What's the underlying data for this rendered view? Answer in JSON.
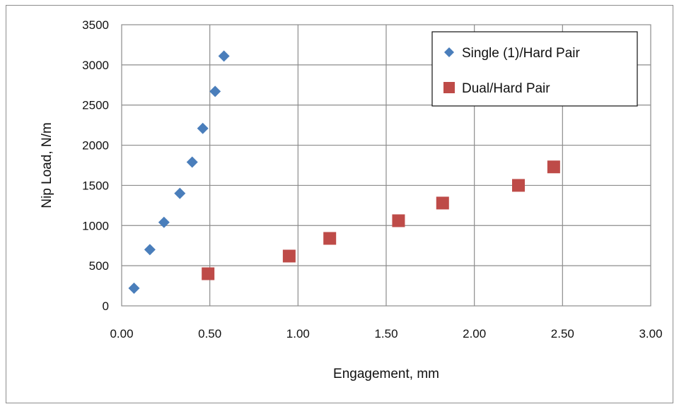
{
  "chart_data": {
    "type": "scatter",
    "title": "",
    "xlabel": "Engagement, mm",
    "ylabel": "Nip Load, N/m",
    "xlim": [
      0,
      3
    ],
    "ylim": [
      0,
      3500
    ],
    "x_ticks": [
      "0.00",
      "0.50",
      "1.00",
      "1.50",
      "2.00",
      "2.50",
      "3.00"
    ],
    "y_ticks": [
      "0",
      "500",
      "1000",
      "1500",
      "2000",
      "2500",
      "3000",
      "3500"
    ],
    "grid": true,
    "legend_position": "top-right",
    "series": [
      {
        "name": "Single (1)/Hard Pair",
        "marker": "diamond",
        "color": "#4a7ebb",
        "points": [
          {
            "x": 0.07,
            "y": 220
          },
          {
            "x": 0.16,
            "y": 700
          },
          {
            "x": 0.24,
            "y": 1040
          },
          {
            "x": 0.33,
            "y": 1400
          },
          {
            "x": 0.4,
            "y": 1790
          },
          {
            "x": 0.46,
            "y": 2210
          },
          {
            "x": 0.53,
            "y": 2670
          },
          {
            "x": 0.58,
            "y": 3110
          }
        ]
      },
      {
        "name": "Dual/Hard Pair",
        "marker": "square",
        "color": "#be4b48",
        "points": [
          {
            "x": 0.49,
            "y": 400
          },
          {
            "x": 0.95,
            "y": 620
          },
          {
            "x": 1.18,
            "y": 840
          },
          {
            "x": 1.57,
            "y": 1060
          },
          {
            "x": 1.82,
            "y": 1280
          },
          {
            "x": 2.25,
            "y": 1500
          },
          {
            "x": 2.45,
            "y": 1730
          }
        ]
      }
    ]
  }
}
